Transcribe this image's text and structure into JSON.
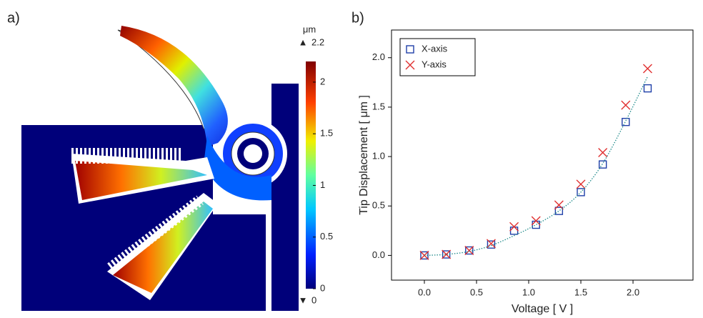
{
  "panel_a": {
    "label": "a)",
    "colorbar": {
      "unit": "μm",
      "clim": [
        0,
        2.2
      ],
      "ticks": [
        0,
        0.5,
        1,
        1.5,
        2
      ]
    }
  },
  "panel_b": {
    "label": "b)"
  },
  "chart_data": {
    "type": "scatter",
    "x_label": "Voltage [ V ]",
    "y_label": "Tip Displacement [ μm ]",
    "x": [
      0,
      0.21,
      0.43,
      0.64,
      0.86,
      1.07,
      1.29,
      1.5,
      1.71,
      1.93,
      2.14
    ],
    "series": [
      {
        "name": "X-axis",
        "color": "#1f3fa8",
        "marker": "square",
        "values": [
          0,
          0.01,
          0.05,
          0.11,
          0.25,
          0.31,
          0.45,
          0.64,
          0.92,
          1.35,
          1.69
        ]
      },
      {
        "name": "Y-axis",
        "color": "#e03030",
        "marker": "x",
        "values": [
          0,
          0.01,
          0.05,
          0.12,
          0.29,
          0.35,
          0.51,
          0.72,
          1.04,
          1.52,
          1.89
        ]
      },
      {
        "color": "#1f8a8a",
        "marker": "dotted-line",
        "values": [
          0,
          0.01,
          0.04,
          0.1,
          0.2,
          0.31,
          0.45,
          0.64,
          0.93,
          1.36,
          1.81
        ]
      }
    ],
    "xlim": [
      -0.315,
      2.575
    ],
    "ylim": [
      -0.25,
      2.28
    ],
    "xticks": [
      {
        "value": 0,
        "label": "0.0"
      },
      {
        "value": 0.5,
        "label": "0.5"
      },
      {
        "value": 1,
        "label": "1.0"
      },
      {
        "value": 1.5,
        "label": "1.5"
      },
      {
        "value": 2,
        "label": "2.0"
      }
    ],
    "yticks": [
      {
        "value": 0,
        "label": "0.0"
      },
      {
        "value": 0.5,
        "label": "0.5"
      },
      {
        "value": 1,
        "label": "1.0"
      },
      {
        "value": 1.5,
        "label": "1.5"
      },
      {
        "value": 2,
        "label": "2.0"
      }
    ],
    "grid": false,
    "legend": "upper left"
  }
}
